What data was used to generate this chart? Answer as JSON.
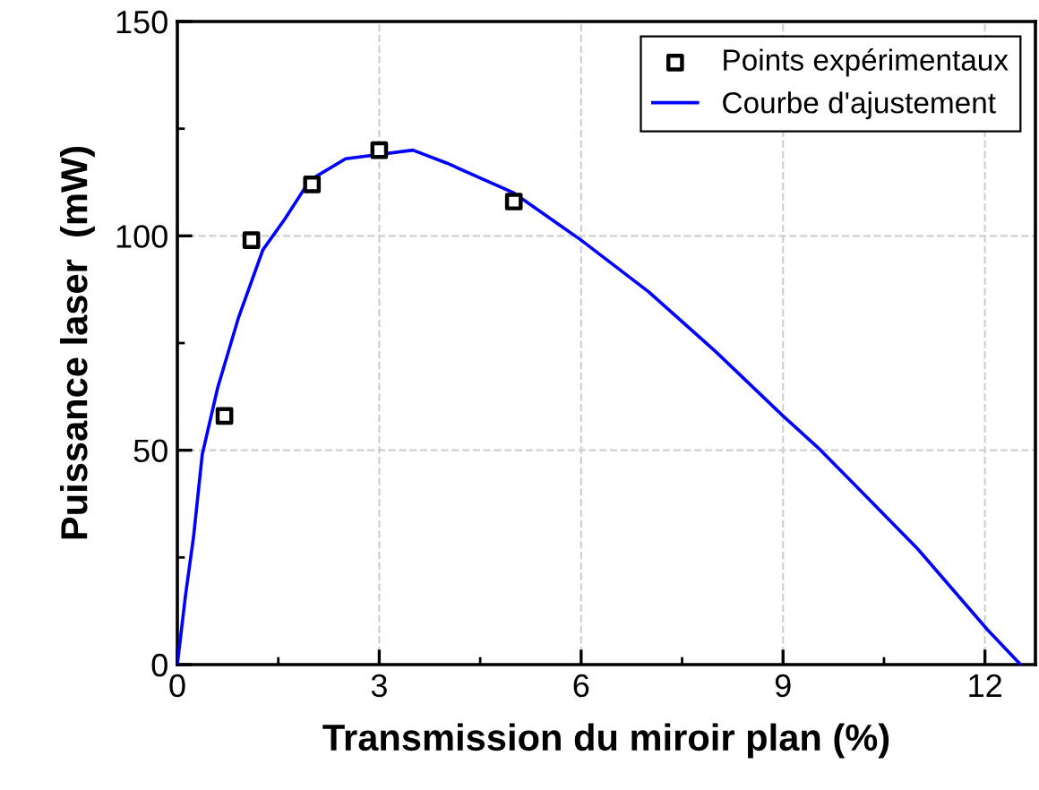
{
  "chart_data": {
    "type": "scatter",
    "xlabel": "Transmission du miroir plan (%)",
    "ylabel": "Puissance laser  (mW)",
    "xlim": [
      0,
      12.75
    ],
    "ylim": [
      0,
      150
    ],
    "xticks": [
      0,
      3,
      6,
      9,
      12
    ],
    "yticks": [
      0,
      50,
      100,
      150
    ],
    "grid": true,
    "legend": "top right",
    "series": [
      {
        "name": "Points expérimentaux",
        "marker": "square",
        "color": "#000000",
        "x": [
          0.7,
          1.1,
          2,
          3,
          5
        ],
        "values": [
          58,
          99,
          112,
          120,
          108
        ]
      },
      {
        "name": "Courbe d'ajustement",
        "type": "line",
        "marker": "none",
        "line_style": "solid",
        "color": "#0000ff",
        "x": [
          0,
          0.12,
          0.24,
          0.37,
          0.6,
          0.91,
          1.27,
          1.6,
          1.97,
          2.5,
          3.5,
          4,
          5,
          6,
          7,
          8,
          9,
          9.52,
          10,
          11,
          12.04,
          12.53
        ],
        "values": [
          0,
          16,
          29.7,
          49,
          64.6,
          81,
          96.7,
          104,
          113,
          118,
          120,
          117,
          110,
          99,
          87,
          73,
          58,
          50.6,
          43,
          27,
          8.1,
          0
        ]
      }
    ]
  }
}
